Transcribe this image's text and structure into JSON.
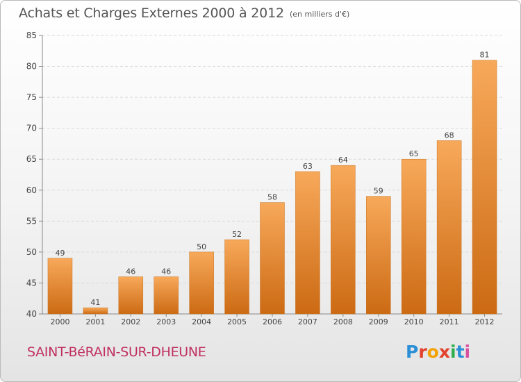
{
  "header": {
    "title": "Achats et Charges Externes 2000 à 2012",
    "subtitle": "(en milliers d'€)"
  },
  "footer": {
    "city": "SAINT-BéRAIN-SUR-DHEUNE",
    "logo_letters": [
      "P",
      "r",
      "o",
      "x",
      "i",
      "t",
      "i"
    ],
    "logo_colors": [
      "#2a8fd6",
      "#e2412e",
      "#f2a100",
      "#e2412e",
      "#2fae4c",
      "#2a8fd6",
      "#d94fa1"
    ]
  },
  "chart_data": {
    "type": "bar",
    "categories": [
      "2000",
      "2001",
      "2002",
      "2003",
      "2004",
      "2005",
      "2006",
      "2007",
      "2008",
      "2009",
      "2010",
      "2011",
      "2012"
    ],
    "values": [
      49,
      41,
      46,
      46,
      50,
      52,
      58,
      63,
      64,
      59,
      65,
      68,
      81
    ],
    "title": "Achats et Charges Externes 2000 à 2012",
    "subtitle": "(en milliers d'€)",
    "xlabel": "",
    "ylabel": "",
    "ylim": [
      40,
      85
    ],
    "yticks": [
      40,
      45,
      50,
      55,
      60,
      65,
      70,
      75,
      80,
      85
    ],
    "grid": true,
    "bar_color": "#f0973e"
  }
}
